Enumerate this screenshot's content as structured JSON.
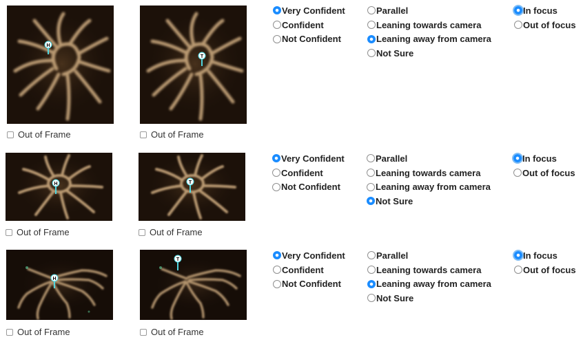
{
  "rows": [
    {
      "out_of_frame_label": "Out of Frame",
      "left_marker": "H",
      "right_marker": "T",
      "confidence": [
        "Very Confident",
        "Confident",
        "Not Confident"
      ],
      "confidence_selected": 0,
      "orientation": [
        "Parallel",
        "Leaning towards camera",
        "Leaning away from camera",
        "Not Sure"
      ],
      "orientation_selected": 2,
      "focus": [
        "In focus",
        "Out of focus"
      ],
      "focus_selected": 0
    },
    {
      "out_of_frame_label": "Out of Frame",
      "left_marker": "H",
      "right_marker": "T",
      "confidence": [
        "Very Confident",
        "Confident",
        "Not Confident"
      ],
      "confidence_selected": 0,
      "orientation": [
        "Parallel",
        "Leaning towards camera",
        "Leaning away from camera",
        "Not Sure"
      ],
      "orientation_selected": 3,
      "focus": [
        "In focus",
        "Out of focus"
      ],
      "focus_selected": 0
    },
    {
      "out_of_frame_label": "Out of Frame",
      "left_marker": "H",
      "right_marker": "T",
      "confidence": [
        "Very Confident",
        "Confident",
        "Not Confident"
      ],
      "confidence_selected": 0,
      "orientation": [
        "Parallel",
        "Leaning towards camera",
        "Leaning away from camera",
        "Not Sure"
      ],
      "orientation_selected": 2,
      "focus": [
        "In focus",
        "Out of focus"
      ],
      "focus_selected": 0
    }
  ],
  "colors": {
    "radio_selected": "#1a8cff",
    "marker": "#4fd6e0",
    "image_bg": "#1c1109",
    "tentacle": "#c9a77d"
  }
}
